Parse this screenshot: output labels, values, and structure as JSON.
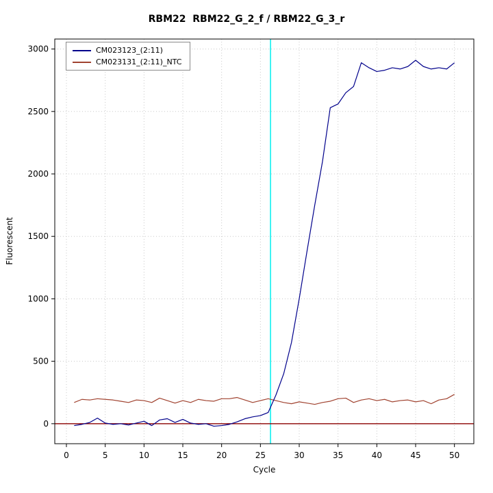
{
  "chart_data": {
    "type": "line",
    "title": "RBM22  RBM22_G_2_f / RBM22_G_3_r",
    "xlabel": "Cycle",
    "ylabel": "Fluorescent",
    "xlim": [
      -1.5,
      52.5
    ],
    "ylim": [
      -160,
      3080
    ],
    "xticks": [
      0,
      5,
      10,
      15,
      20,
      25,
      30,
      35,
      40,
      45,
      50
    ],
    "yticks": [
      0,
      500,
      1000,
      1500,
      2000,
      2500,
      3000
    ],
    "grid": true,
    "grid_color": "#c8c8c8",
    "legend_position": "top-left",
    "threshold_line": {
      "x": 26.3,
      "color": "#00eeee"
    },
    "baseline": {
      "y": 0,
      "color": "#8b0000"
    },
    "x": [
      1,
      2,
      3,
      4,
      5,
      6,
      7,
      8,
      9,
      10,
      11,
      12,
      13,
      14,
      15,
      16,
      17,
      18,
      19,
      20,
      21,
      22,
      23,
      24,
      25,
      26,
      27,
      28,
      29,
      30,
      31,
      32,
      33,
      34,
      35,
      36,
      37,
      38,
      39,
      40,
      41,
      42,
      43,
      44,
      45,
      46,
      47,
      48,
      49,
      50
    ],
    "series": [
      {
        "name": "CM023123_(2:11)",
        "color": "#00008b",
        "values": [
          -15,
          -5,
          10,
          45,
          5,
          -5,
          0,
          -10,
          5,
          20,
          -15,
          30,
          40,
          10,
          35,
          5,
          -5,
          0,
          -20,
          -15,
          -5,
          15,
          40,
          55,
          65,
          90,
          230,
          400,
          650,
          1000,
          1380,
          1750,
          2100,
          2530,
          2560,
          2650,
          2700,
          2890,
          2850,
          2820,
          2830,
          2850,
          2840,
          2860,
          2910,
          2860,
          2840,
          2850,
          2840,
          2890
        ]
      },
      {
        "name": "CM023131_(2:11)_NTC",
        "color": "#a0422f",
        "values": [
          170,
          195,
          190,
          200,
          195,
          190,
          180,
          170,
          190,
          185,
          170,
          205,
          185,
          165,
          185,
          170,
          195,
          185,
          180,
          200,
          200,
          210,
          190,
          170,
          185,
          200,
          185,
          170,
          160,
          175,
          165,
          155,
          170,
          180,
          200,
          205,
          170,
          190,
          200,
          185,
          195,
          175,
          185,
          190,
          175,
          185,
          160,
          190,
          200,
          235
        ]
      }
    ]
  }
}
